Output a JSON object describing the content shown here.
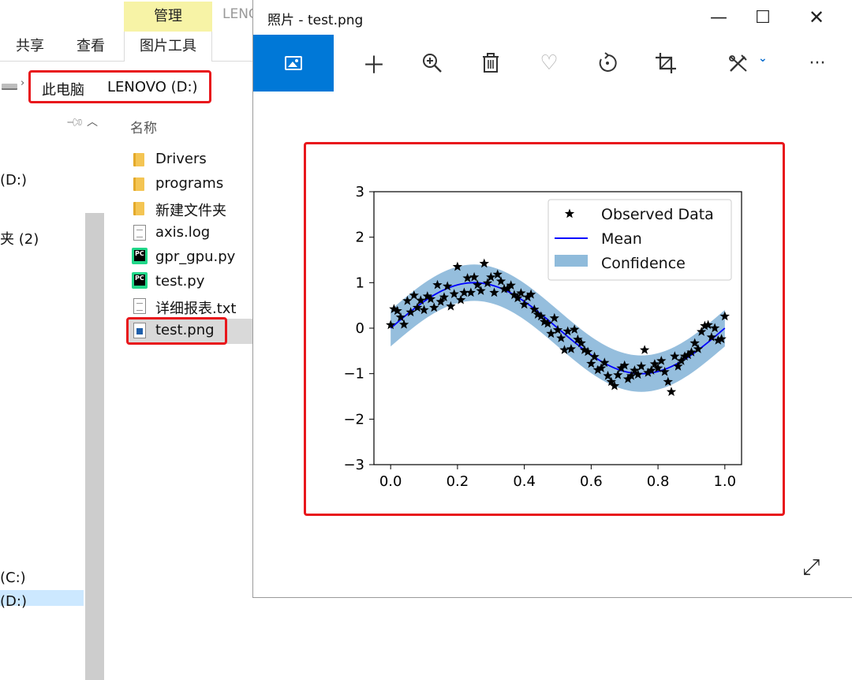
{
  "explorer": {
    "ribbon": {
      "context_tab": "管理",
      "context_subtab": "图片工具",
      "tabs": [
        "共享",
        "查看"
      ],
      "window_title_peek": "LENC"
    },
    "address": {
      "segments": [
        "此电脑",
        "LENOVO (D:)"
      ]
    },
    "nav_items": [
      "(D:)",
      "夹 (2)",
      "(C:)",
      "(D:)"
    ],
    "column_header": "名称",
    "files": [
      {
        "name": "Drivers",
        "icon": "folder-icon"
      },
      {
        "name": "programs",
        "icon": "folder-icon"
      },
      {
        "name": "新建文件夹",
        "icon": "folder-icon"
      },
      {
        "name": "axis.log",
        "icon": "text-file-icon"
      },
      {
        "name": "gpr_gpu.py",
        "icon": "pycharm-file-icon"
      },
      {
        "name": "test.py",
        "icon": "pycharm-file-icon"
      },
      {
        "name": "详细报表.txt",
        "icon": "text-file-icon"
      },
      {
        "name": "test.png",
        "icon": "image-file-icon"
      }
    ],
    "selected_file": "test.png"
  },
  "photos": {
    "title": "照片 - test.png",
    "toolbar_icons": [
      "image-view-icon",
      "add-icon",
      "zoom-in-icon",
      "delete-icon",
      "favorite-icon",
      "rotate-icon",
      "crop-icon",
      "edit-icon",
      "more-icon"
    ],
    "window_controls": [
      "minimize-icon",
      "maximize-icon",
      "close-icon"
    ],
    "accent_color": "#0078d7"
  },
  "chart_data": {
    "type": "line",
    "title": "",
    "xlabel": "",
    "ylabel": "",
    "xlim": [
      -0.05,
      1.05
    ],
    "ylim": [
      -3,
      3
    ],
    "xticks": [
      "0.0",
      "0.2",
      "0.4",
      "0.6",
      "0.8",
      "1.0"
    ],
    "yticks": [
      "3",
      "2",
      "1",
      "0",
      "−1",
      "−2",
      "−3"
    ],
    "legend": {
      "position": "top-right",
      "entries": [
        "Observed Data",
        "Mean",
        "Confidence"
      ]
    },
    "series": [
      {
        "name": "Observed Data",
        "kind": "scatter",
        "marker": "star",
        "color": "#000000",
        "x": [
          0.0,
          0.01,
          0.02,
          0.03,
          0.04,
          0.05,
          0.06,
          0.07,
          0.08,
          0.09,
          0.1,
          0.11,
          0.12,
          0.13,
          0.14,
          0.15,
          0.16,
          0.17,
          0.18,
          0.19,
          0.2,
          0.21,
          0.22,
          0.23,
          0.24,
          0.25,
          0.26,
          0.27,
          0.28,
          0.29,
          0.3,
          0.31,
          0.32,
          0.33,
          0.34,
          0.35,
          0.36,
          0.37,
          0.38,
          0.39,
          0.4,
          0.41,
          0.42,
          0.43,
          0.44,
          0.45,
          0.46,
          0.47,
          0.48,
          0.49,
          0.5,
          0.51,
          0.52,
          0.53,
          0.54,
          0.55,
          0.56,
          0.57,
          0.58,
          0.59,
          0.6,
          0.61,
          0.62,
          0.63,
          0.64,
          0.65,
          0.66,
          0.67,
          0.68,
          0.69,
          0.7,
          0.71,
          0.72,
          0.73,
          0.74,
          0.75,
          0.76,
          0.77,
          0.78,
          0.79,
          0.8,
          0.81,
          0.82,
          0.83,
          0.84,
          0.85,
          0.86,
          0.87,
          0.88,
          0.89,
          0.9,
          0.91,
          0.92,
          0.93,
          0.94,
          0.95,
          0.96,
          0.97,
          0.98,
          0.99,
          1.0
        ],
        "y": [
          0.07,
          0.42,
          0.38,
          0.24,
          0.08,
          0.6,
          0.35,
          0.72,
          0.45,
          0.61,
          0.4,
          0.7,
          0.64,
          0.45,
          0.95,
          0.58,
          0.68,
          0.92,
          0.48,
          0.75,
          1.35,
          0.62,
          0.78,
          1.1,
          0.78,
          1.12,
          0.95,
          0.82,
          1.42,
          0.99,
          1.12,
          0.78,
          1.18,
          1.03,
          0.86,
          0.87,
          0.94,
          0.73,
          0.66,
          0.77,
          0.52,
          0.68,
          0.74,
          0.41,
          0.3,
          0.26,
          0.14,
          0.1,
          -0.12,
          0.22,
          -0.04,
          -0.22,
          -0.48,
          -0.07,
          -0.46,
          -0.03,
          -0.25,
          -0.33,
          -0.48,
          -0.52,
          -0.78,
          -0.63,
          -0.92,
          -0.88,
          -0.76,
          -1.05,
          -1.18,
          -1.27,
          -1.03,
          -0.88,
          -0.82,
          -1.12,
          -1.05,
          -0.93,
          -1.02,
          -0.84,
          -0.48,
          -0.98,
          -0.93,
          -0.79,
          -0.88,
          -0.72,
          -0.96,
          -1.18,
          -1.4,
          -0.62,
          -0.84,
          -0.72,
          -0.62,
          -0.59,
          -0.53,
          -0.33,
          -0.46,
          -0.08,
          0.05,
          0.07,
          -0.2,
          0.0,
          -0.27,
          -0.24,
          0.26
        ]
      },
      {
        "name": "Mean",
        "kind": "line",
        "color": "#0000ff",
        "function": "sin(2πx)"
      },
      {
        "name": "Confidence",
        "kind": "band",
        "color": "#8fbbdb",
        "half_width": 0.4
      }
    ]
  }
}
